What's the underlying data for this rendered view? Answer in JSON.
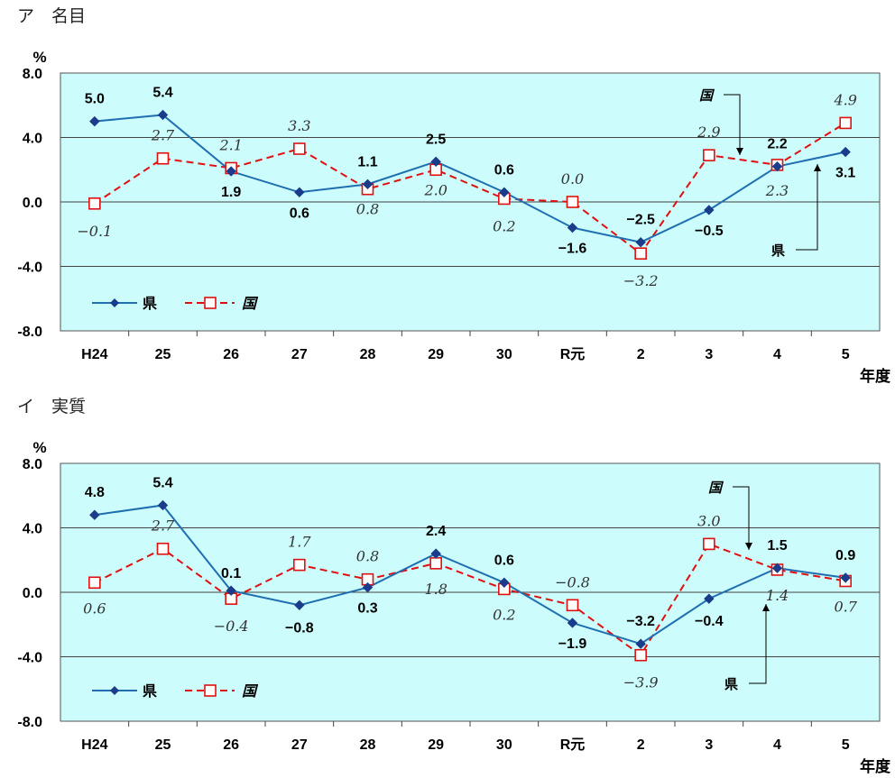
{
  "chart_data": [
    {
      "type": "line",
      "title": "ア　名目",
      "ylabel": "%",
      "xlabel": "年度",
      "ylim": [
        -8.0,
        8.0
      ],
      "yticks": [
        "8.0",
        "4.0",
        "0.0",
        "-4.0",
        "-8.0"
      ],
      "categories": [
        "H24",
        "25",
        "26",
        "27",
        "28",
        "29",
        "30",
        "R元",
        "2",
        "3",
        "4",
        "5"
      ],
      "grid": "horizontal",
      "legend": "bottom-left",
      "series": [
        {
          "name": "県",
          "color": "#1f6fb0",
          "marker": "diamond",
          "values": [
            5.0,
            5.4,
            1.9,
            0.6,
            1.1,
            2.5,
            0.6,
            -1.6,
            -2.5,
            -0.5,
            2.2,
            3.1
          ],
          "labels": [
            "5.0",
            "5.4",
            "1.9",
            "0.6",
            "1.1",
            "2.5",
            "0.6",
            "−1.6",
            "−2.5",
            "−0.5",
            "2.2",
            "3.1"
          ]
        },
        {
          "name": "国",
          "color": "#e01010",
          "marker": "open-square",
          "dash": true,
          "values": [
            -0.1,
            2.7,
            2.1,
            3.3,
            0.8,
            2.0,
            0.2,
            0.0,
            -3.2,
            2.9,
            2.3,
            4.9
          ],
          "labels": [
            "−0.1",
            "2.7",
            "2.1",
            "3.3",
            "0.8",
            "2.0",
            "0.2",
            "0.0",
            "−3.2",
            "2.9",
            "2.3",
            "4.9"
          ]
        }
      ],
      "callouts": [
        "国",
        "県"
      ]
    },
    {
      "type": "line",
      "title": "イ　実質",
      "ylabel": "%",
      "xlabel": "年度",
      "ylim": [
        -8.0,
        8.0
      ],
      "yticks": [
        "8.0",
        "4.0",
        "0.0",
        "-4.0",
        "-8.0"
      ],
      "categories": [
        "H24",
        "25",
        "26",
        "27",
        "28",
        "29",
        "30",
        "R元",
        "2",
        "3",
        "4",
        "5"
      ],
      "grid": "horizontal",
      "legend": "bottom-left",
      "series": [
        {
          "name": "県",
          "color": "#1f6fb0",
          "marker": "diamond",
          "values": [
            4.8,
            5.4,
            0.1,
            -0.8,
            0.3,
            2.4,
            0.6,
            -1.9,
            -3.2,
            -0.4,
            1.5,
            0.9
          ],
          "labels": [
            "4.8",
            "5.4",
            "0.1",
            "−0.8",
            "0.3",
            "2.4",
            "0.6",
            "−1.9",
            "−3.2",
            "−0.4",
            "1.5",
            "0.9"
          ]
        },
        {
          "name": "国",
          "color": "#e01010",
          "marker": "open-square",
          "dash": true,
          "values": [
            0.6,
            2.7,
            -0.4,
            1.7,
            0.8,
            1.8,
            0.2,
            -0.8,
            -3.9,
            3.0,
            1.4,
            0.7
          ],
          "labels": [
            "0.6",
            "2.7",
            "−0.4",
            "1.7",
            "0.8",
            "1.8",
            "0.2",
            "−0.8",
            "−3.9",
            "3.0",
            "1.4",
            "0.7"
          ]
        }
      ],
      "callouts": [
        "国",
        "県"
      ]
    }
  ]
}
